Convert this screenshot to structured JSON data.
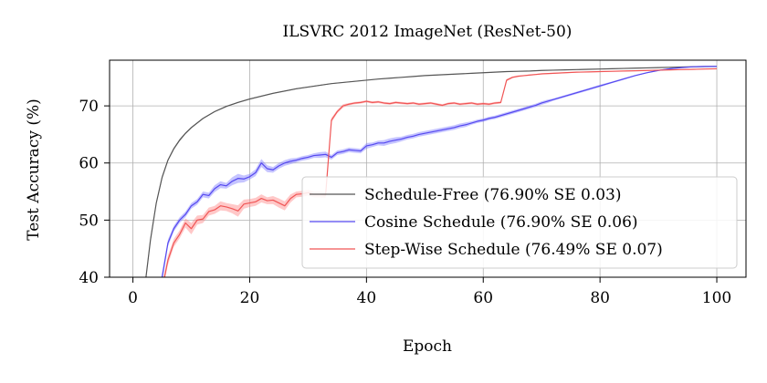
{
  "chart_data": {
    "type": "line",
    "title": "ILSVRC 2012 ImageNet (ResNet-50)",
    "xlabel": "Epoch",
    "ylabel": "Test Accuracy (%)",
    "xlim": [
      -4,
      105
    ],
    "ylim": [
      40,
      78
    ],
    "xticks": [
      0,
      20,
      40,
      60,
      80,
      100
    ],
    "yticks": [
      40,
      50,
      60,
      70
    ],
    "grid": true,
    "legend_position": "lower-right",
    "series": [
      {
        "name": "Schedule-Free (76.90% SE 0.03)",
        "color": "#555555",
        "band_color": "#555555",
        "x": [
          1,
          2,
          3,
          4,
          5,
          6,
          7,
          8,
          9,
          10,
          12,
          14,
          16,
          18,
          20,
          22,
          24,
          26,
          28,
          30,
          32,
          34,
          36,
          38,
          40,
          42,
          44,
          46,
          48,
          50,
          52,
          54,
          56,
          58,
          60,
          62,
          64,
          66,
          68,
          70,
          72,
          74,
          76,
          78,
          80,
          82,
          84,
          86,
          88,
          90,
          92,
          94,
          96,
          98,
          100
        ],
        "values": [
          31,
          38,
          46.5,
          53,
          57.5,
          60.5,
          62.5,
          64,
          65.2,
          66.2,
          67.8,
          69.0,
          69.9,
          70.6,
          71.2,
          71.7,
          72.2,
          72.6,
          73.0,
          73.3,
          73.6,
          73.9,
          74.1,
          74.3,
          74.5,
          74.7,
          74.85,
          75.0,
          75.15,
          75.3,
          75.4,
          75.5,
          75.6,
          75.7,
          75.8,
          75.9,
          76.0,
          76.05,
          76.1,
          76.2,
          76.25,
          76.3,
          76.35,
          76.4,
          76.45,
          76.5,
          76.55,
          76.6,
          76.65,
          76.7,
          76.75,
          76.8,
          76.85,
          76.88,
          76.9
        ],
        "se": [
          0.5,
          0.5,
          0.4,
          0.3,
          0.3,
          0.2,
          0.2,
          0.2,
          0.15,
          0.15,
          0.1,
          0.1,
          0.1,
          0.1,
          0.1,
          0.1,
          0.1,
          0.1,
          0.08,
          0.08,
          0.08,
          0.06,
          0.06,
          0.06,
          0.06,
          0.05,
          0.05,
          0.05,
          0.05,
          0.05,
          0.05,
          0.05,
          0.04,
          0.04,
          0.04,
          0.04,
          0.04,
          0.04,
          0.04,
          0.04,
          0.03,
          0.03,
          0.03,
          0.03,
          0.03,
          0.03,
          0.03,
          0.03,
          0.03,
          0.03,
          0.03,
          0.03,
          0.03,
          0.03,
          0.03
        ]
      },
      {
        "name": "Cosine Schedule (76.90% SE 0.06)",
        "color": "#5548f0",
        "band_color": "#7f7cff",
        "x": [
          4,
          5,
          6,
          7,
          8,
          9,
          10,
          11,
          12,
          13,
          14,
          15,
          16,
          17,
          18,
          19,
          20,
          21,
          22,
          23,
          24,
          25,
          26,
          27,
          28,
          29,
          30,
          31,
          32,
          33,
          34,
          35,
          36,
          37,
          38,
          39,
          40,
          41,
          42,
          43,
          44,
          45,
          46,
          47,
          48,
          49,
          50,
          51,
          52,
          53,
          54,
          55,
          56,
          57,
          58,
          59,
          60,
          61,
          62,
          63,
          64,
          65,
          66,
          67,
          68,
          69,
          70,
          71,
          72,
          73,
          74,
          75,
          76,
          77,
          78,
          79,
          80,
          82,
          84,
          86,
          88,
          90,
          92,
          94,
          96,
          98,
          100
        ],
        "values": [
          34,
          40,
          46,
          48.5,
          50,
          51,
          52.5,
          53.2,
          54.5,
          54.3,
          55.5,
          56.2,
          56.0,
          56.8,
          57.3,
          57.2,
          57.6,
          58.3,
          60.0,
          59.0,
          58.8,
          59.5,
          60.0,
          60.3,
          60.5,
          60.8,
          61.0,
          61.3,
          61.4,
          61.5,
          61.0,
          61.8,
          62.0,
          62.3,
          62.2,
          62.1,
          63.0,
          63.2,
          63.5,
          63.5,
          63.8,
          64.0,
          64.2,
          64.5,
          64.7,
          65.0,
          65.2,
          65.4,
          65.6,
          65.8,
          66.0,
          66.2,
          66.5,
          66.7,
          67.0,
          67.3,
          67.5,
          67.8,
          68.0,
          68.3,
          68.6,
          68.9,
          69.2,
          69.5,
          69.8,
          70.1,
          70.5,
          70.8,
          71.1,
          71.4,
          71.7,
          72.0,
          72.3,
          72.6,
          72.9,
          73.2,
          73.5,
          74.1,
          74.7,
          75.3,
          75.8,
          76.2,
          76.5,
          76.7,
          76.85,
          76.9,
          76.9
        ],
        "se": [
          0.8,
          0.8,
          0.6,
          0.5,
          0.5,
          0.5,
          0.5,
          0.5,
          0.5,
          0.5,
          0.6,
          0.6,
          0.5,
          0.7,
          0.8,
          0.6,
          0.5,
          0.6,
          0.7,
          0.6,
          0.5,
          0.5,
          0.5,
          0.5,
          0.4,
          0.4,
          0.4,
          0.4,
          0.5,
          0.5,
          0.4,
          0.4,
          0.4,
          0.4,
          0.4,
          0.4,
          0.5,
          0.4,
          0.4,
          0.5,
          0.5,
          0.5,
          0.4,
          0.4,
          0.4,
          0.4,
          0.4,
          0.4,
          0.4,
          0.4,
          0.4,
          0.4,
          0.4,
          0.4,
          0.3,
          0.3,
          0.3,
          0.3,
          0.3,
          0.3,
          0.3,
          0.3,
          0.3,
          0.3,
          0.3,
          0.3,
          0.3,
          0.3,
          0.2,
          0.2,
          0.2,
          0.2,
          0.2,
          0.2,
          0.2,
          0.2,
          0.2,
          0.15,
          0.15,
          0.1,
          0.1,
          0.1,
          0.08,
          0.06,
          0.06,
          0.06,
          0.06
        ]
      },
      {
        "name": "Step-Wise Schedule (76.49% SE 0.07)",
        "color": "#f05555",
        "band_color": "#ff8585",
        "x": [
          4,
          5,
          6,
          7,
          8,
          9,
          10,
          11,
          12,
          13,
          14,
          15,
          16,
          17,
          18,
          19,
          20,
          21,
          22,
          23,
          24,
          25,
          26,
          27,
          28,
          29,
          30,
          31,
          32,
          33,
          34,
          35,
          36,
          37,
          38,
          39,
          40,
          41,
          42,
          43,
          44,
          45,
          46,
          47,
          48,
          49,
          50,
          51,
          52,
          53,
          54,
          55,
          56,
          57,
          58,
          59,
          60,
          61,
          62,
          63,
          64,
          65,
          66,
          67,
          68,
          69,
          70,
          72,
          74,
          76,
          78,
          80,
          82,
          84,
          86,
          88,
          90,
          92,
          94,
          96,
          98,
          100
        ],
        "values": [
          33,
          38,
          43,
          46,
          47.5,
          49.5,
          48.5,
          50,
          50.2,
          51.5,
          51.8,
          52.5,
          52.3,
          52.0,
          51.6,
          52.8,
          53.0,
          53.2,
          53.8,
          53.4,
          53.5,
          53.0,
          52.5,
          53.8,
          54.5,
          54.6,
          54.8,
          54.5,
          54.5,
          54.4,
          67.5,
          69.0,
          70.0,
          70.3,
          70.5,
          70.6,
          70.8,
          70.6,
          70.7,
          70.5,
          70.4,
          70.6,
          70.5,
          70.4,
          70.5,
          70.3,
          70.4,
          70.5,
          70.3,
          70.1,
          70.4,
          70.5,
          70.3,
          70.4,
          70.5,
          70.3,
          70.4,
          70.3,
          70.5,
          70.6,
          74.5,
          75.0,
          75.2,
          75.3,
          75.4,
          75.5,
          75.6,
          75.7,
          75.8,
          75.9,
          75.95,
          76.0,
          76.05,
          76.1,
          76.15,
          76.2,
          76.25,
          76.3,
          76.35,
          76.4,
          76.45,
          76.49
        ],
        "se": [
          0.8,
          0.8,
          0.8,
          0.7,
          0.7,
          0.8,
          1.0,
          0.8,
          0.7,
          0.7,
          0.7,
          0.8,
          0.7,
          0.8,
          1.0,
          0.8,
          0.7,
          0.7,
          0.7,
          0.6,
          0.7,
          0.8,
          0.8,
          0.7,
          0.5,
          0.5,
          0.5,
          0.5,
          0.5,
          0.5,
          0.4,
          0.3,
          0.3,
          0.2,
          0.2,
          0.2,
          0.2,
          0.2,
          0.2,
          0.2,
          0.2,
          0.2,
          0.2,
          0.2,
          0.2,
          0.2,
          0.2,
          0.2,
          0.2,
          0.2,
          0.2,
          0.2,
          0.2,
          0.2,
          0.2,
          0.2,
          0.2,
          0.2,
          0.2,
          0.2,
          0.2,
          0.15,
          0.15,
          0.1,
          0.1,
          0.1,
          0.1,
          0.1,
          0.08,
          0.08,
          0.08,
          0.08,
          0.08,
          0.07,
          0.07,
          0.07,
          0.07,
          0.07,
          0.07,
          0.07,
          0.07,
          0.07
        ]
      }
    ]
  }
}
